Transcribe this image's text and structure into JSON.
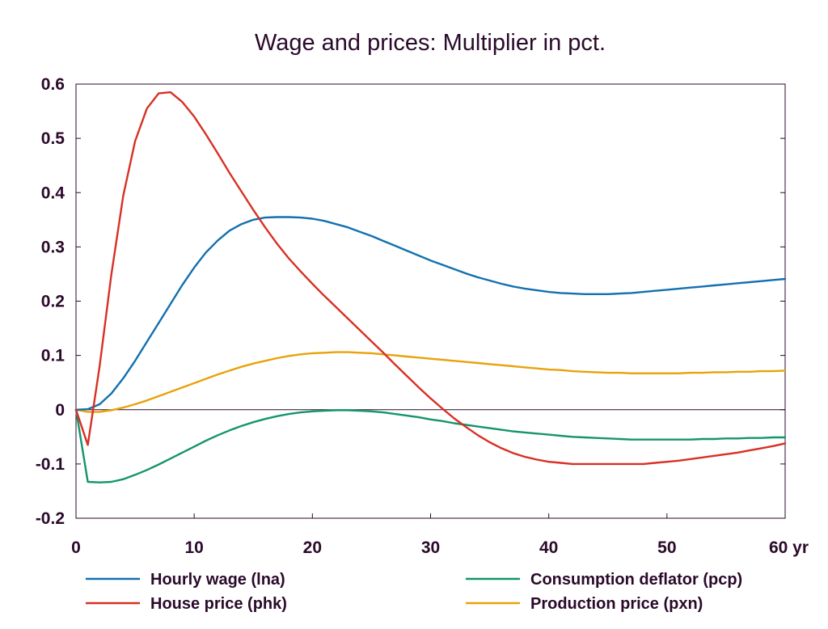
{
  "chart_data": {
    "type": "line",
    "title": "Wage and prices: Multiplier in pct.",
    "xlabel": "",
    "ylabel": "",
    "x_unit": "yr",
    "xlim": [
      0,
      60
    ],
    "ylim": [
      -0.2,
      0.6
    ],
    "x_ticks": [
      0,
      10,
      20,
      30,
      40,
      50,
      60
    ],
    "x_tick_labels": [
      "0",
      "10",
      "20",
      "30",
      "40",
      "50",
      "60 yr"
    ],
    "y_ticks": [
      -0.2,
      -0.1,
      0,
      0.1,
      0.2,
      0.3,
      0.4,
      0.5,
      0.6
    ],
    "y_tick_labels": [
      "-0.2",
      "-0.1",
      "0",
      "0.1",
      "0.2",
      "0.3",
      "0.4",
      "0.5",
      "0.6"
    ],
    "grid": false,
    "zero_line": true,
    "legend_position": "bottom",
    "x": [
      0,
      1,
      2,
      3,
      4,
      5,
      6,
      7,
      8,
      9,
      10,
      11,
      12,
      13,
      14,
      15,
      16,
      17,
      18,
      19,
      20,
      21,
      22,
      23,
      24,
      25,
      26,
      27,
      28,
      29,
      30,
      31,
      32,
      33,
      34,
      35,
      36,
      37,
      38,
      39,
      40,
      41,
      42,
      43,
      44,
      45,
      46,
      47,
      48,
      49,
      50,
      51,
      52,
      53,
      54,
      55,
      56,
      57,
      58,
      59,
      60
    ],
    "series": [
      {
        "name": "Hourly wage (lna)",
        "color": "#1270b0",
        "values": [
          0.0,
          0.001,
          0.01,
          0.03,
          0.058,
          0.09,
          0.125,
          0.16,
          0.195,
          0.23,
          0.262,
          0.29,
          0.312,
          0.33,
          0.342,
          0.35,
          0.354,
          0.355,
          0.355,
          0.354,
          0.352,
          0.348,
          0.342,
          0.336,
          0.328,
          0.32,
          0.311,
          0.302,
          0.293,
          0.284,
          0.275,
          0.267,
          0.259,
          0.251,
          0.244,
          0.238,
          0.232,
          0.227,
          0.223,
          0.22,
          0.217,
          0.215,
          0.214,
          0.213,
          0.213,
          0.213,
          0.214,
          0.215,
          0.217,
          0.219,
          0.221,
          0.223,
          0.225,
          0.227,
          0.229,
          0.231,
          0.233,
          0.235,
          0.237,
          0.239,
          0.241
        ]
      },
      {
        "name": "House price (phk)",
        "color": "#d83024",
        "values": [
          0.0,
          -0.065,
          0.08,
          0.25,
          0.395,
          0.495,
          0.555,
          0.583,
          0.585,
          0.567,
          0.54,
          0.507,
          0.472,
          0.436,
          0.402,
          0.368,
          0.336,
          0.306,
          0.279,
          0.255,
          0.232,
          0.21,
          0.189,
          0.168,
          0.147,
          0.126,
          0.105,
          0.083,
          0.062,
          0.041,
          0.021,
          0.002,
          -0.016,
          -0.032,
          -0.047,
          -0.06,
          -0.071,
          -0.08,
          -0.087,
          -0.092,
          -0.096,
          -0.098,
          -0.1,
          -0.1,
          -0.1,
          -0.1,
          -0.1,
          -0.1,
          -0.1,
          -0.098,
          -0.096,
          -0.094,
          -0.091,
          -0.088,
          -0.085,
          -0.082,
          -0.079,
          -0.075,
          -0.071,
          -0.067,
          -0.062
        ]
      },
      {
        "name": "Consumption deflator (pcp)",
        "color": "#14956c",
        "values": [
          0.0,
          -0.133,
          -0.134,
          -0.133,
          -0.128,
          -0.12,
          -0.111,
          -0.101,
          -0.09,
          -0.079,
          -0.068,
          -0.057,
          -0.047,
          -0.038,
          -0.03,
          -0.023,
          -0.017,
          -0.012,
          -0.008,
          -0.005,
          -0.003,
          -0.002,
          -0.001,
          -0.001,
          -0.002,
          -0.003,
          -0.005,
          -0.008,
          -0.011,
          -0.014,
          -0.018,
          -0.021,
          -0.025,
          -0.028,
          -0.031,
          -0.034,
          -0.037,
          -0.04,
          -0.042,
          -0.044,
          -0.046,
          -0.048,
          -0.05,
          -0.051,
          -0.052,
          -0.053,
          -0.054,
          -0.055,
          -0.055,
          -0.055,
          -0.055,
          -0.055,
          -0.055,
          -0.054,
          -0.054,
          -0.053,
          -0.053,
          -0.052,
          -0.052,
          -0.051,
          -0.051
        ]
      },
      {
        "name": "Production price (pxn)",
        "color": "#e8a20c",
        "values": [
          0.0,
          -0.004,
          -0.004,
          -0.001,
          0.004,
          0.01,
          0.017,
          0.025,
          0.033,
          0.041,
          0.049,
          0.057,
          0.065,
          0.072,
          0.079,
          0.085,
          0.09,
          0.095,
          0.099,
          0.102,
          0.104,
          0.105,
          0.106,
          0.106,
          0.105,
          0.104,
          0.102,
          0.1,
          0.098,
          0.096,
          0.094,
          0.092,
          0.09,
          0.088,
          0.086,
          0.084,
          0.082,
          0.08,
          0.078,
          0.076,
          0.074,
          0.073,
          0.071,
          0.07,
          0.069,
          0.068,
          0.068,
          0.067,
          0.067,
          0.067,
          0.067,
          0.067,
          0.068,
          0.068,
          0.069,
          0.069,
          0.07,
          0.07,
          0.071,
          0.071,
          0.072
        ]
      }
    ]
  }
}
